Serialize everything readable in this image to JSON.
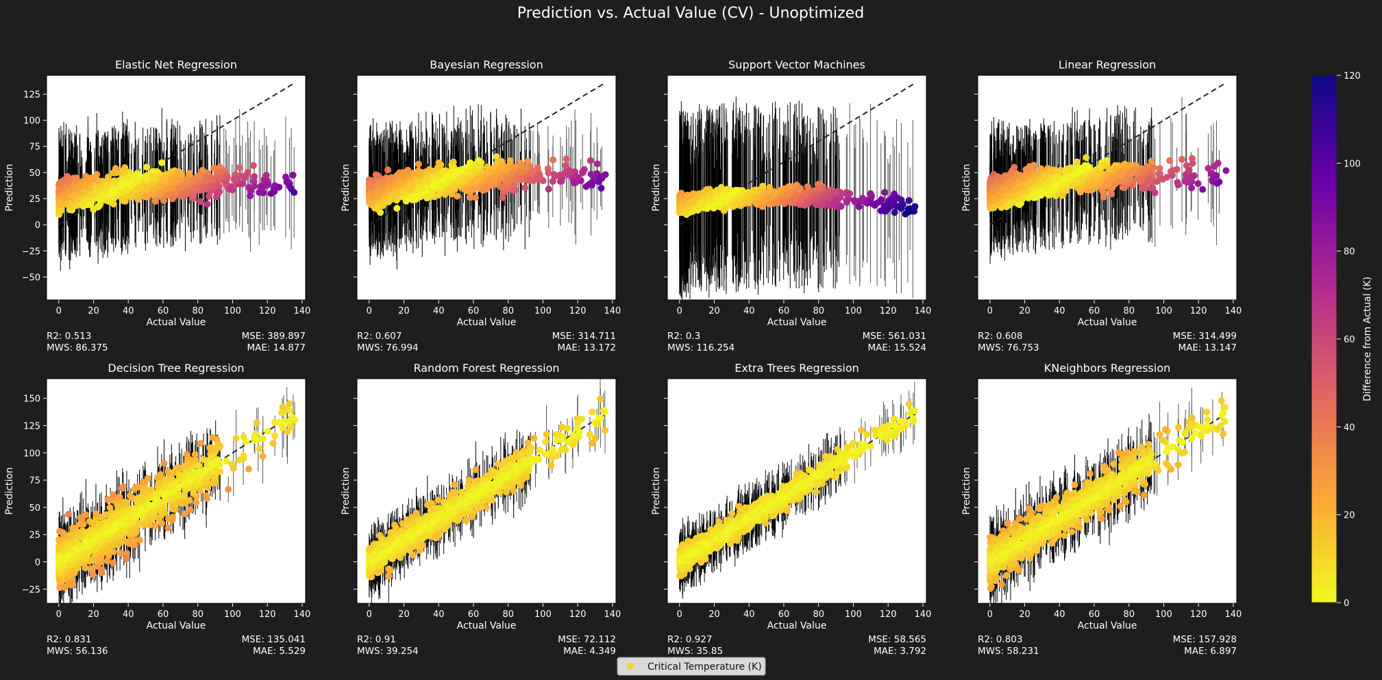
{
  "figure": {
    "title": "Prediction vs. Actual Value (CV) - Unoptimized",
    "background": "#1e1e1e",
    "legend": {
      "label": "Critical Temperature (K)",
      "marker_color": "#f5d327",
      "placement": "bottom-center"
    },
    "colorbar": {
      "label": "Difference from Actual (K)",
      "range": [
        0,
        120
      ],
      "ticks": [
        "0",
        "20",
        "40",
        "60",
        "80",
        "100",
        "120"
      ],
      "colormap": "plasma_r"
    }
  },
  "chart_data": [
    {
      "type": "scatter",
      "title": "Elastic Net Regression",
      "xlabel": "Actual Value",
      "ylabel": "Prediction",
      "xlim": [
        -7,
        142
      ],
      "ylim": [
        -72,
        143
      ],
      "xticks": [
        "0",
        "20",
        "40",
        "60",
        "80",
        "100",
        "120",
        "140"
      ],
      "yticks": [
        "−50",
        "−25",
        "0",
        "25",
        "50",
        "75",
        "100",
        "125"
      ],
      "metrics": {
        "r2": "R2: 0.513",
        "mws": "MWS: 86.375",
        "mse": "MSE: 389.897",
        "mae": "MAE: 14.877"
      }
    },
    {
      "type": "scatter",
      "title": "Bayesian Regression",
      "xlabel": "Actual Value",
      "ylabel": "Prediction",
      "xlim": [
        -7,
        142
      ],
      "ylim": [
        -72,
        143
      ],
      "xticks": [
        "0",
        "20",
        "40",
        "60",
        "80",
        "100",
        "120",
        "140"
      ],
      "yticks": [],
      "metrics": {
        "r2": "R2: 0.607",
        "mws": "MWS: 76.994",
        "mse": "MSE: 314.711",
        "mae": "MAE: 13.172"
      }
    },
    {
      "type": "scatter",
      "title": "Support Vector Machines",
      "xlabel": "Actual Value",
      "ylabel": "Prediction",
      "xlim": [
        -7,
        142
      ],
      "ylim": [
        -72,
        143
      ],
      "xticks": [
        "0",
        "20",
        "40",
        "60",
        "80",
        "100",
        "120",
        "140"
      ],
      "yticks": [],
      "metrics": {
        "r2": "R2: 0.3",
        "mws": "MWS: 116.254",
        "mse": "MSE: 561.031",
        "mae": "MAE: 15.524"
      }
    },
    {
      "type": "scatter",
      "title": "Linear Regression",
      "xlabel": "Actual Value",
      "ylabel": "Prediction",
      "xlim": [
        -7,
        142
      ],
      "ylim": [
        -72,
        143
      ],
      "xticks": [
        "0",
        "20",
        "40",
        "60",
        "80",
        "100",
        "120",
        "140"
      ],
      "yticks": [],
      "metrics": {
        "r2": "R2: 0.608",
        "mws": "MWS: 76.753",
        "mse": "MSE: 314.499",
        "mae": "MAE: 13.147"
      }
    },
    {
      "type": "scatter",
      "title": "Decision Tree Regression",
      "xlabel": "Actual Value",
      "ylabel": "Prediction",
      "xlim": [
        -7,
        142
      ],
      "ylim": [
        -38,
        168
      ],
      "xticks": [
        "0",
        "20",
        "40",
        "60",
        "80",
        "100",
        "120",
        "140"
      ],
      "yticks": [
        "−25",
        "0",
        "25",
        "50",
        "75",
        "100",
        "125",
        "150"
      ],
      "metrics": {
        "r2": "R2: 0.831",
        "mws": "MWS: 56.136",
        "mse": "MSE: 135.041",
        "mae": "MAE: 5.529"
      }
    },
    {
      "type": "scatter",
      "title": "Random Forest Regression",
      "xlabel": "Actual Value",
      "ylabel": "Prediction",
      "xlim": [
        -7,
        142
      ],
      "ylim": [
        -38,
        168
      ],
      "xticks": [
        "0",
        "20",
        "40",
        "60",
        "80",
        "100",
        "120",
        "140"
      ],
      "yticks": [],
      "metrics": {
        "r2": "R2: 0.91",
        "mws": "MWS: 39.254",
        "mse": "MSE: 72.112",
        "mae": "MAE: 4.349"
      }
    },
    {
      "type": "scatter",
      "title": "Extra Trees Regression",
      "xlabel": "Actual Value",
      "ylabel": "Prediction",
      "xlim": [
        -7,
        142
      ],
      "ylim": [
        -38,
        168
      ],
      "xticks": [
        "0",
        "20",
        "40",
        "60",
        "80",
        "100",
        "120",
        "140"
      ],
      "yticks": [],
      "metrics": {
        "r2": "R2: 0.927",
        "mws": "MWS: 35.85",
        "mse": "MSE: 58.565",
        "mae": "MAE: 3.792"
      }
    },
    {
      "type": "scatter",
      "title": "KNeighbors Regression",
      "xlabel": "Actual Value",
      "ylabel": "Prediction",
      "xlim": [
        -7,
        142
      ],
      "ylim": [
        -38,
        168
      ],
      "xticks": [
        "0",
        "20",
        "40",
        "60",
        "80",
        "100",
        "120",
        "140"
      ],
      "yticks": [],
      "metrics": {
        "r2": "R2: 0.803",
        "mws": "MWS: 58.231",
        "mse": "MSE: 157.928",
        "mae": "MAE: 6.897"
      }
    }
  ]
}
